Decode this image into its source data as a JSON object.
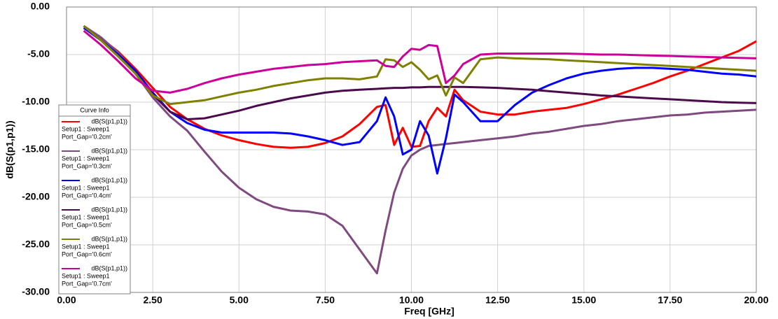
{
  "chart_data": {
    "type": "line",
    "xlabel": "Freq [GHz]",
    "ylabel": "dB(S(p1,p1))",
    "legend_title": "Curve Info",
    "xlim": [
      0,
      20
    ],
    "ylim": [
      -30,
      0
    ],
    "xticks": [
      {
        "value": 0,
        "label": "0.00"
      },
      {
        "value": 2.5,
        "label": "2.50"
      },
      {
        "value": 5,
        "label": "5.00"
      },
      {
        "value": 7.5,
        "label": "7.50"
      },
      {
        "value": 10,
        "label": "10.00"
      },
      {
        "value": 12.5,
        "label": "12.50"
      },
      {
        "value": 15,
        "label": "15.00"
      },
      {
        "value": 17.5,
        "label": "17.50"
      },
      {
        "value": 20,
        "label": "20.00"
      }
    ],
    "yticks": [
      {
        "value": 0,
        "label": "0.00"
      },
      {
        "value": -5,
        "label": "-5.00"
      },
      {
        "value": -10,
        "label": "-10.00"
      },
      {
        "value": -15,
        "label": "-15.00"
      },
      {
        "value": -20,
        "label": "-20.00"
      },
      {
        "value": -25,
        "label": "-25.00"
      },
      {
        "value": -30,
        "label": "-30.00"
      }
    ],
    "grid": true,
    "legend": "lower-left",
    "x": [
      0.5,
      1,
      1.5,
      2,
      2.5,
      3,
      3.5,
      4,
      4.5,
      5,
      5.5,
      6,
      6.5,
      7,
      7.5,
      8,
      8.5,
      9,
      9.25,
      9.5,
      9.75,
      10,
      10.25,
      10.5,
      10.75,
      11,
      11.25,
      11.5,
      12,
      12.5,
      13,
      13.5,
      14,
      14.5,
      15,
      15.5,
      16,
      16.5,
      17,
      17.5,
      18,
      18.5,
      19,
      19.5,
      20
    ],
    "series": [
      {
        "name": "dB(S(p1,p1))",
        "setup": "Setup1 : Sweep1",
        "variation": "Port_Gap='0.2cm'",
        "color": "#ff0000",
        "values": [
          -2,
          -3.3,
          -4.7,
          -6.5,
          -8.5,
          -10.5,
          -11.8,
          -12.8,
          -13.5,
          -14,
          -14.4,
          -14.7,
          -14.8,
          -14.7,
          -14.3,
          -13.6,
          -12.3,
          -10.5,
          -10.3,
          -14.5,
          -12.7,
          -14.7,
          -14.6,
          -12,
          -10.6,
          -11.5,
          -8.7,
          -9.8,
          -11,
          -11.3,
          -11.3,
          -11,
          -10.8,
          -10.6,
          -10.2,
          -9.7,
          -9.2,
          -8.6,
          -8,
          -7.3,
          -6.7,
          -6,
          -5.3,
          -4.6,
          -3.6
        ]
      },
      {
        "name": "dB(S(p1,p1))",
        "setup": "Setup1 : Sweep1",
        "variation": "Port_Gap='0.3cm'",
        "color": "#7f4a7f",
        "values": [
          -2,
          -3.2,
          -4.8,
          -7,
          -9.5,
          -11.5,
          -13,
          -15.2,
          -17.3,
          -19,
          -20.2,
          -21,
          -21.4,
          -21.5,
          -21.8,
          -23,
          -25.5,
          -28,
          -23.5,
          -19.5,
          -17,
          -15.6,
          -15,
          -14.6,
          -14.5,
          -14.4,
          -14.3,
          -14.2,
          -14,
          -13.8,
          -13.6,
          -13.3,
          -13.1,
          -12.8,
          -12.5,
          -12.3,
          -12,
          -11.8,
          -11.6,
          -11.4,
          -11.3,
          -11.1,
          -11,
          -10.9,
          -10.8
        ]
      },
      {
        "name": "dB(S(p1,p1))",
        "setup": "Setup1 : Sweep1",
        "variation": "Port_Gap='0.4cm'",
        "color": "#0000ff",
        "values": [
          -2.2,
          -3.5,
          -5,
          -6.7,
          -9,
          -11,
          -12.2,
          -12.9,
          -13.2,
          -13.2,
          -13.2,
          -13.2,
          -13.3,
          -13.6,
          -14,
          -14.5,
          -14.2,
          -12,
          -9.5,
          -11.5,
          -15.5,
          -15,
          -12,
          -13.5,
          -17.5,
          -13.8,
          -9.2,
          -10,
          -12,
          -12,
          -10.3,
          -9,
          -8.2,
          -7.5,
          -7,
          -6.7,
          -6.5,
          -6.4,
          -6.4,
          -6.5,
          -6.6,
          -6.8,
          -7,
          -7.1,
          -7.3
        ]
      },
      {
        "name": "dB(S(p1,p1))",
        "setup": "Setup1 : Sweep1",
        "variation": "Port_Gap='0.5cm'",
        "color": "#4b0a4b",
        "values": [
          -2,
          -3.5,
          -5.2,
          -7,
          -9.2,
          -11,
          -11.8,
          -11.7,
          -11.3,
          -10.9,
          -10.4,
          -10,
          -9.6,
          -9.3,
          -9,
          -8.8,
          -8.7,
          -8.6,
          -8.55,
          -8.5,
          -8.5,
          -8.45,
          -8.45,
          -8.4,
          -8.4,
          -8.4,
          -8.4,
          -8.4,
          -8.45,
          -8.5,
          -8.6,
          -8.7,
          -8.85,
          -9,
          -9.15,
          -9.3,
          -9.4,
          -9.5,
          -9.6,
          -9.7,
          -9.8,
          -9.9,
          -10,
          -10.05,
          -10.1
        ]
      },
      {
        "name": "dB(S(p1,p1))",
        "setup": "Setup1 : Sweep1",
        "variation": "Port_Gap='0.6cm'",
        "color": "#808000",
        "values": [
          -2,
          -3.5,
          -5.2,
          -7,
          -9.3,
          -10.2,
          -10,
          -9.8,
          -9.4,
          -9,
          -8.7,
          -8.3,
          -8,
          -7.7,
          -7.5,
          -7.5,
          -7.6,
          -7.3,
          -5.5,
          -5.6,
          -6.3,
          -5.8,
          -6.6,
          -7.6,
          -7.2,
          -9.3,
          -7.4,
          -8,
          -5.5,
          -5.3,
          -5.4,
          -5.45,
          -5.5,
          -5.6,
          -5.7,
          -5.8,
          -5.9,
          -6,
          -6.1,
          -6.2,
          -6.3,
          -6.4,
          -6.5,
          -6.6,
          -6.7
        ]
      },
      {
        "name": "dB(S(p1,p1))",
        "setup": "Setup1 : Sweep1",
        "variation": "Port_Gap='0.7cm'",
        "color": "#cc0099",
        "values": [
          -2.5,
          -4,
          -5.7,
          -7.5,
          -8.8,
          -9,
          -8.6,
          -8,
          -7.5,
          -7.1,
          -6.8,
          -6.5,
          -6.3,
          -6.1,
          -6,
          -5.8,
          -5.7,
          -5.6,
          -6.2,
          -6.3,
          -5.2,
          -4.4,
          -4.5,
          -4,
          -4.1,
          -8,
          -7.2,
          -6,
          -5,
          -4.9,
          -4.9,
          -4.9,
          -4.9,
          -4.9,
          -4.95,
          -5,
          -5,
          -5.05,
          -5.1,
          -5.15,
          -5.2,
          -5.25,
          -5.3,
          -5.35,
          -5.4
        ]
      }
    ]
  }
}
